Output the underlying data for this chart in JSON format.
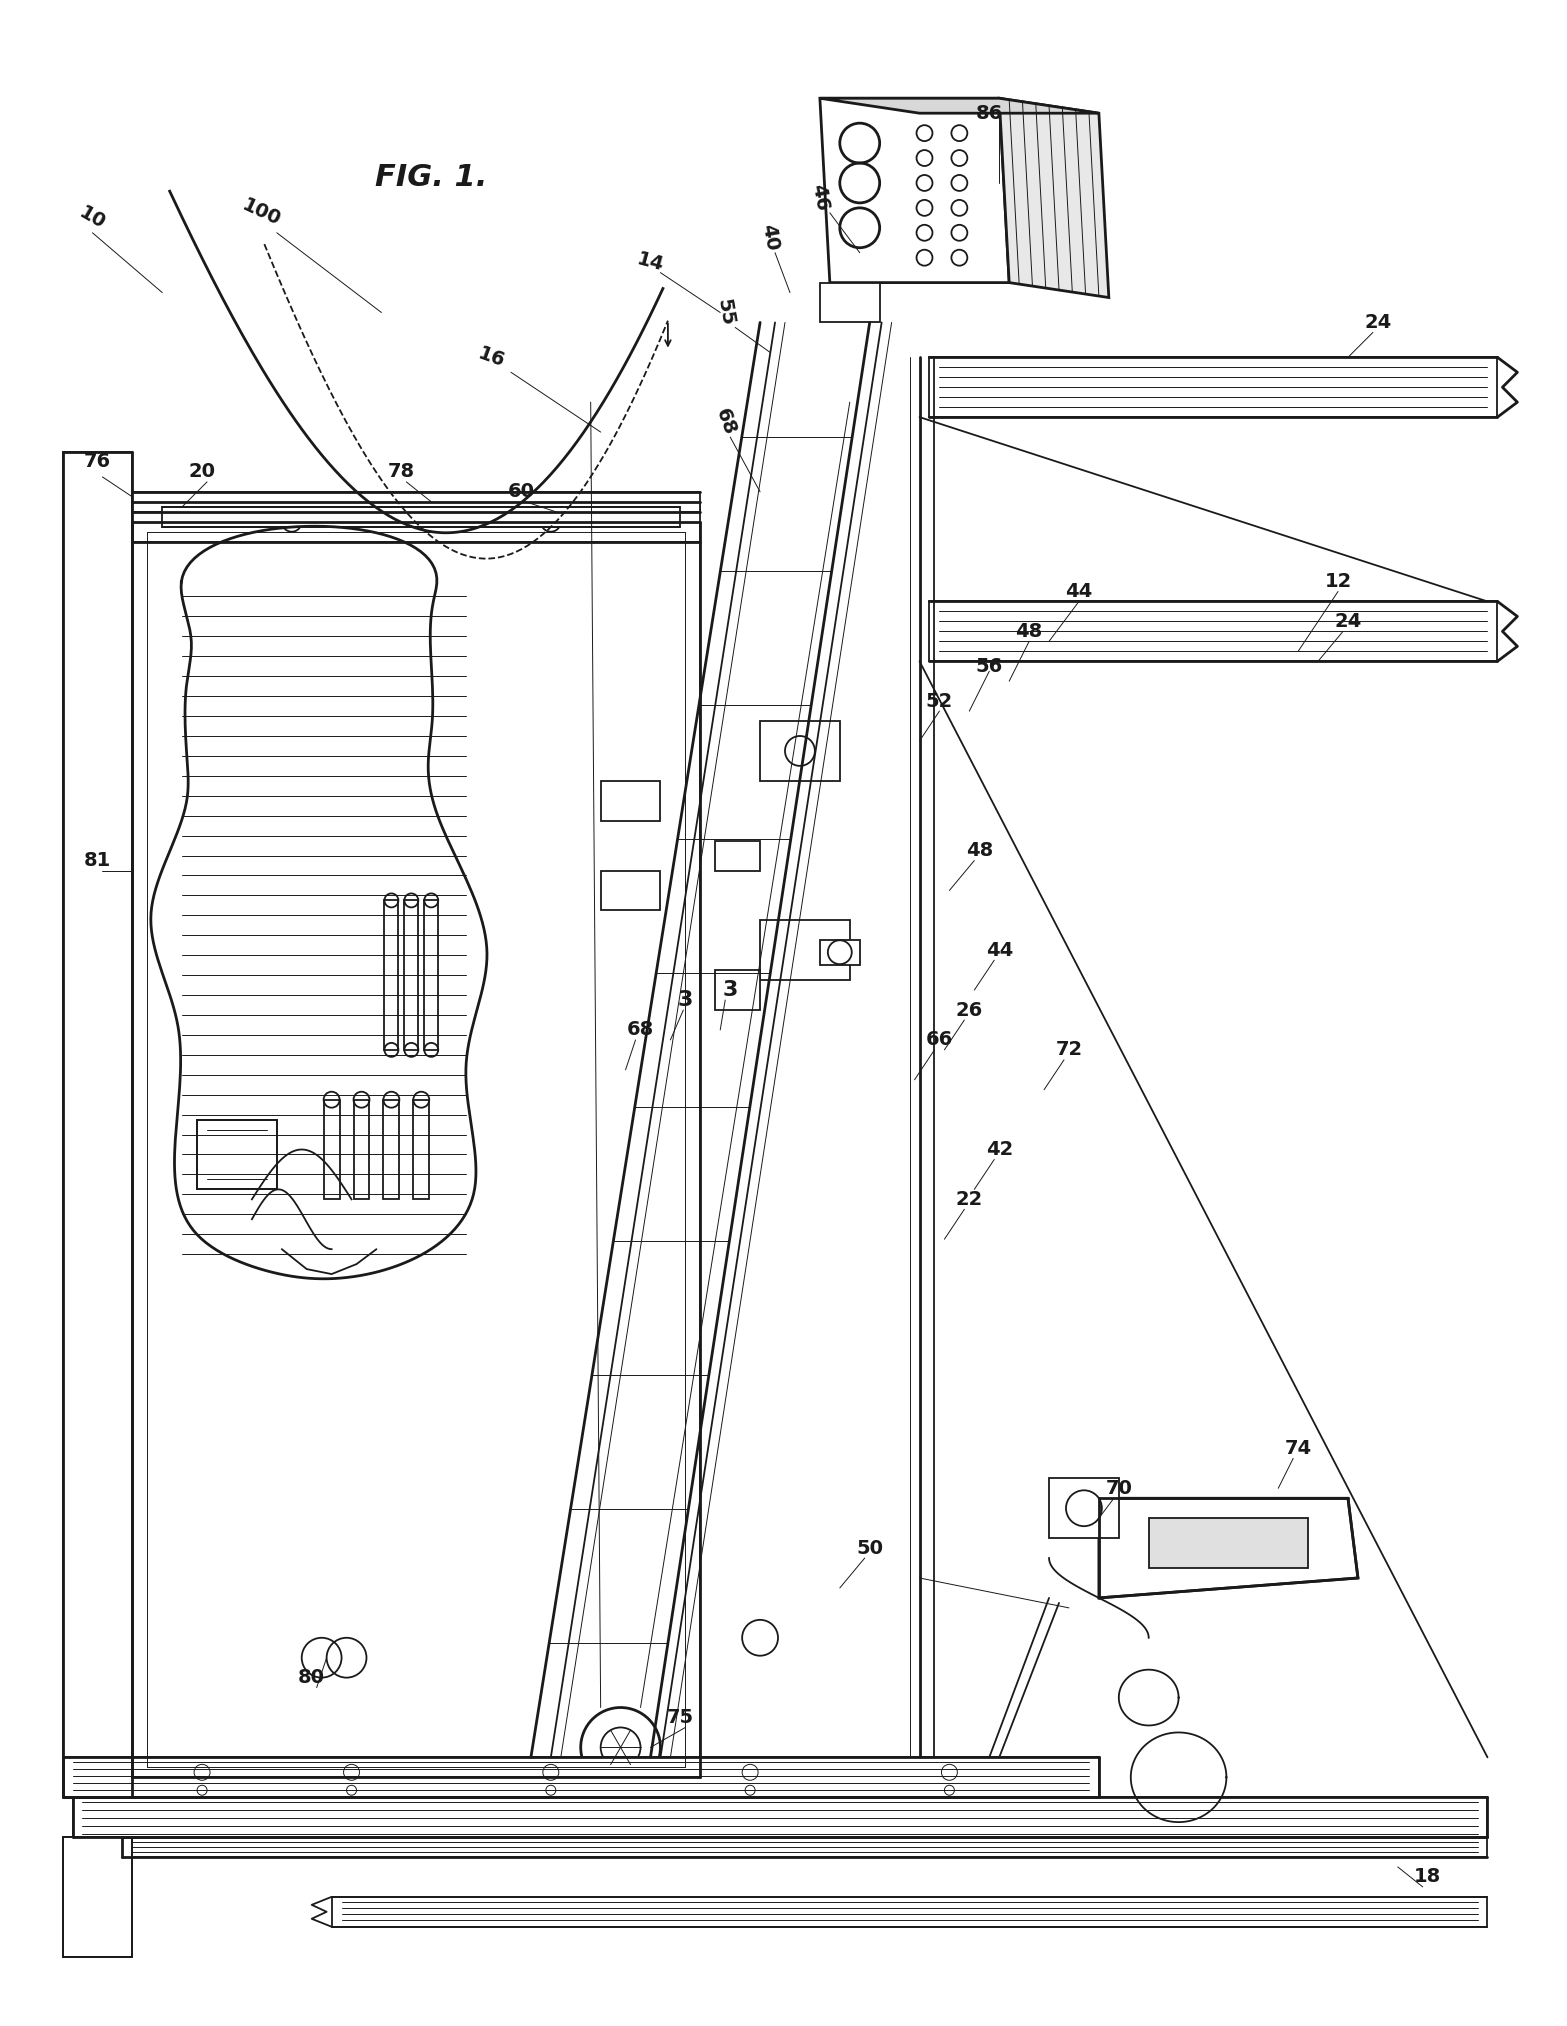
{
  "bg_color": "#ffffff",
  "line_color": "#1a1a1a",
  "fig_width": 15.67,
  "fig_height": 20.26,
  "dpi": 100,
  "lw_thin": 0.7,
  "lw_med": 1.3,
  "lw_thick": 2.0,
  "lw_bold": 2.5,
  "label_fontsize": 14,
  "fig_label_fontsize": 22
}
